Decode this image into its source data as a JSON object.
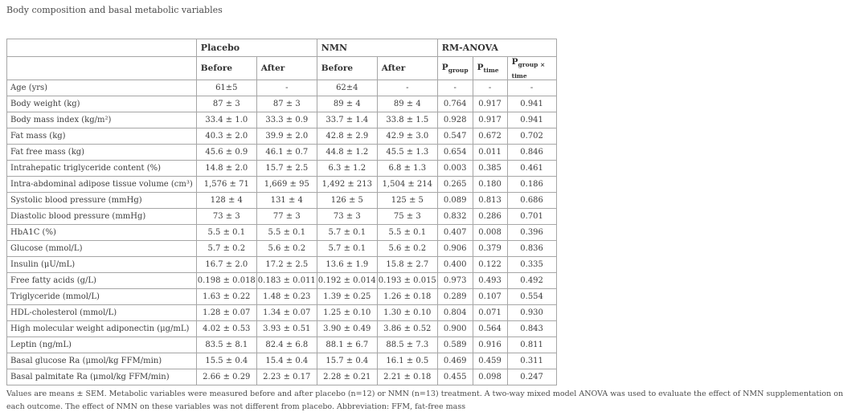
{
  "page": {
    "title": "Body composition and basal metabolic variables",
    "footnote": "Values are means ± SEM. Metabolic variables were measured before and after placebo (n=12) or NMN (n=13) treatment. A two-way mixed model ANOVA was used to evaluate the effect of NMN supplementation on each outcome. The effect of NMN on these variables was not different from placebo. Abbreviation: FFM, fat-free mass"
  },
  "colors": {
    "background": "#ffffff",
    "border": "#a6a6a6",
    "header_text": "#323232",
    "body_text": "#3d3d3d",
    "muted_text": "#4c4c4c"
  },
  "table": {
    "column_groups": [
      {
        "label": "Placebo",
        "span": 2
      },
      {
        "label": "NMN",
        "span": 2
      },
      {
        "label": "RM-ANOVA",
        "span": 3
      }
    ],
    "sub_headers": [
      {
        "label": "Before"
      },
      {
        "label": "After"
      },
      {
        "label": "Before"
      },
      {
        "label": "After"
      },
      {
        "base": "P",
        "sub": "group"
      },
      {
        "base": "P",
        "sub": "time"
      },
      {
        "base": "P",
        "sub": "group × time"
      }
    ],
    "rows": [
      {
        "label": "Age (yrs)",
        "values": [
          "61±5",
          "-",
          "62±4",
          "-",
          "-",
          "-",
          "-"
        ]
      },
      {
        "label": "Body weight (kg)",
        "values": [
          "87 ± 3",
          "87 ± 3",
          "89 ± 4",
          "89 ± 4",
          "0.764",
          "0.917",
          "0.941"
        ]
      },
      {
        "label": "Body mass index (kg/m²)",
        "values": [
          "33.4 ± 1.0",
          "33.3 ± 0.9",
          "33.7 ± 1.4",
          "33.8 ± 1.5",
          "0.928",
          "0.917",
          "0.941"
        ]
      },
      {
        "label": "Fat mass (kg)",
        "values": [
          "40.3 ± 2.0",
          "39.9 ± 2.0",
          "42.8 ± 2.9",
          "42.9 ± 3.0",
          "0.547",
          "0.672",
          "0.702"
        ]
      },
      {
        "label": "Fat free mass (kg)",
        "values": [
          "45.6 ± 0.9",
          "46.1 ± 0.7",
          "44.8 ± 1.2",
          "45.5 ± 1.3",
          "0.654",
          "0.011",
          "0.846"
        ]
      },
      {
        "label": "Intrahepatic triglyceride content (%)",
        "values": [
          "14.8 ± 2.0",
          "15.7 ± 2.5",
          "6.3 ± 1.2",
          "6.8 ± 1.3",
          "0.003",
          "0.385",
          "0.461"
        ]
      },
      {
        "label": "Intra-abdominal adipose tissue volume (cm³)",
        "values": [
          "1,576 ± 71",
          "1,669 ± 95",
          "1,492 ± 213",
          "1,504 ± 214",
          "0.265",
          "0.180",
          "0.186"
        ]
      },
      {
        "label": "Systolic blood pressure (mmHg)",
        "values": [
          "128 ± 4",
          "131 ± 4",
          "126 ± 5",
          "125 ± 5",
          "0.089",
          "0.813",
          "0.686"
        ]
      },
      {
        "label": "Diastolic blood pressure (mmHg)",
        "values": [
          "73 ± 3",
          "77 ± 3",
          "73 ± 3",
          "75 ± 3",
          "0.832",
          "0.286",
          "0.701"
        ]
      },
      {
        "label": "HbA1C (%)",
        "values": [
          "5.5 ± 0.1",
          "5.5 ± 0.1",
          "5.7 ± 0.1",
          "5.5 ± 0.1",
          "0.407",
          "0.008",
          "0.396"
        ]
      },
      {
        "label": "Glucose (mmol/L)",
        "values": [
          "5.7 ± 0.2",
          "5.6 ± 0.2",
          "5.7 ± 0.1",
          "5.6 ± 0.2",
          "0.906",
          "0.379",
          "0.836"
        ]
      },
      {
        "label": "Insulin (μU/mL)",
        "values": [
          "16.7 ± 2.0",
          "17.2 ± 2.5",
          "13.6 ± 1.9",
          "15.8 ± 2.7",
          "0.400",
          "0.122",
          "0.335"
        ]
      },
      {
        "label": "Free fatty acids (g/L)",
        "values": [
          "0.198 ± 0.018",
          "0.183 ± 0.011",
          "0.192 ± 0.014",
          "0.193 ± 0.015",
          "0.973",
          "0.493",
          "0.492"
        ]
      },
      {
        "label": "Triglyceride (mmol/L)",
        "values": [
          "1.63 ± 0.22",
          "1.48 ± 0.23",
          "1.39 ± 0.25",
          "1.26 ± 0.18",
          "0.289",
          "0.107",
          "0.554"
        ]
      },
      {
        "label": "HDL-cholesterol (mmol/L)",
        "values": [
          "1.28 ± 0.07",
          "1.34 ± 0.07",
          "1.25 ± 0.10",
          "1.30 ± 0.10",
          "0.804",
          "0.071",
          "0.930"
        ]
      },
      {
        "label": "High molecular weight adiponectin (μg/mL)",
        "values": [
          "4.02 ± 0.53",
          "3.93 ± 0.51",
          "3.90 ± 0.49",
          "3.86 ± 0.52",
          "0.900",
          "0.564",
          "0.843"
        ]
      },
      {
        "label": "Leptin (ng/mL)",
        "values": [
          "83.5 ± 8.1",
          "82.4 ± 6.8",
          "88.1 ± 6.7",
          "88.5 ± 7.3",
          "0.589",
          "0.916",
          "0.811"
        ]
      },
      {
        "label": "Basal glucose Ra (μmol/kg FFM/min)",
        "values": [
          "15.5 ± 0.4",
          "15.4 ± 0.4",
          "15.7 ± 0.4",
          "16.1 ± 0.5",
          "0.469",
          "0.459",
          "0.311"
        ]
      },
      {
        "label": "Basal palmitate Ra (μmol/kg FFM/min)",
        "values": [
          "2.66 ± 0.29",
          "2.23 ± 0.17",
          "2.28 ± 0.21",
          "2.21 ± 0.18",
          "0.455",
          "0.098",
          "0.247"
        ]
      }
    ]
  }
}
